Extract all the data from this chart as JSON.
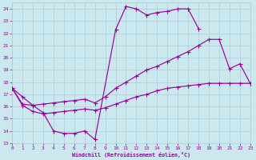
{
  "xlabel": "Windchill (Refroidissement éolien,°C)",
  "bg_color": "#cce8ef",
  "grid_color": "#aacdd8",
  "line_color": "#990099",
  "markersize": 2.0,
  "linewidth": 0.85,
  "xlim": [
    0,
    23
  ],
  "ylim": [
    13,
    24.5
  ],
  "xticks": [
    0,
    1,
    2,
    3,
    4,
    5,
    6,
    7,
    8,
    9,
    10,
    11,
    12,
    13,
    14,
    15,
    16,
    17,
    18,
    19,
    20,
    21,
    22,
    23
  ],
  "yticks": [
    13,
    14,
    15,
    16,
    17,
    18,
    19,
    20,
    21,
    22,
    23,
    24
  ],
  "curve1_x": [
    0,
    1,
    2,
    3,
    4,
    5,
    6,
    7,
    8,
    10,
    11,
    12,
    13,
    14,
    15,
    16,
    17,
    18
  ],
  "curve1_y": [
    17.5,
    16.8,
    16.1,
    15.5,
    14.0,
    13.8,
    13.8,
    14.0,
    13.3,
    22.3,
    24.2,
    24.0,
    23.5,
    23.7,
    23.8,
    24.0,
    24.0,
    22.4
  ],
  "curve2_x": [
    0,
    1,
    2,
    3,
    4,
    5,
    6,
    7,
    8,
    9,
    10,
    11,
    12,
    13,
    14,
    15,
    16,
    17,
    18,
    19,
    20,
    21,
    22,
    23
  ],
  "curve2_y": [
    17.5,
    16.2,
    16.1,
    16.2,
    16.3,
    16.4,
    16.5,
    16.6,
    16.3,
    16.8,
    17.5,
    18.0,
    18.5,
    19.0,
    19.3,
    19.7,
    20.1,
    20.5,
    21.0,
    21.5,
    21.5,
    19.1,
    19.5,
    17.9
  ],
  "curve3_x": [
    0,
    1,
    2,
    3,
    4,
    5,
    6,
    7,
    8,
    9,
    10,
    11,
    12,
    13,
    14,
    15,
    16,
    17,
    18,
    19,
    20,
    21,
    22,
    23
  ],
  "curve3_y": [
    17.5,
    16.1,
    15.6,
    15.4,
    15.5,
    15.6,
    15.7,
    15.8,
    15.7,
    15.9,
    16.2,
    16.5,
    16.8,
    17.0,
    17.3,
    17.5,
    17.6,
    17.7,
    17.8,
    17.9,
    17.9,
    17.9,
    17.9,
    17.9
  ]
}
